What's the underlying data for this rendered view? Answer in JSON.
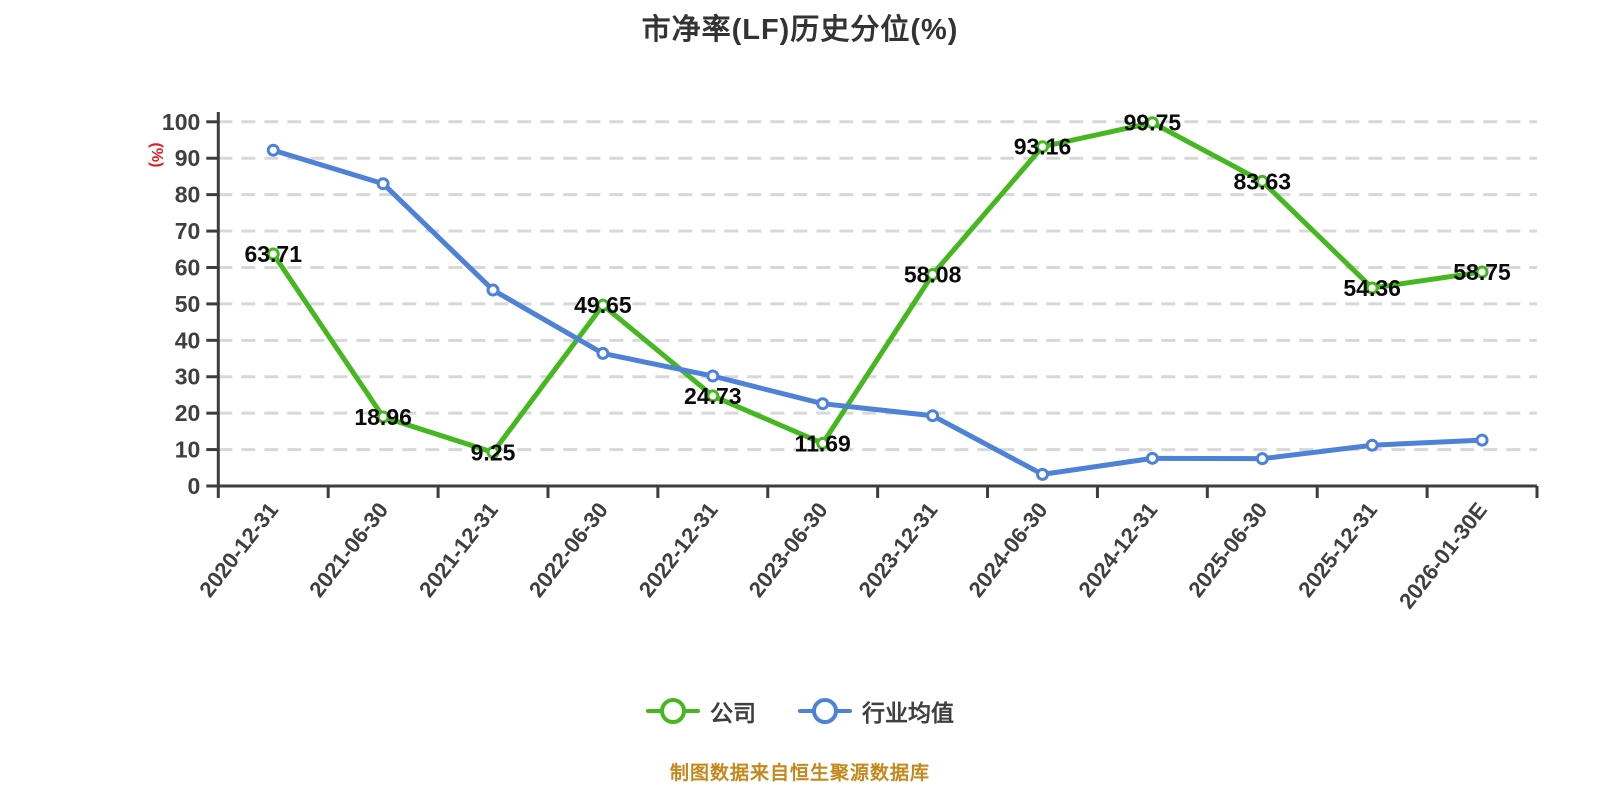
{
  "page": {
    "background": "#ffffff",
    "source_note": {
      "text": "制图数据来自恒生聚源数据库",
      "color": "#c5881c"
    }
  },
  "chart_data": {
    "type": "line",
    "title": "市净率(LF)历史分位(%)",
    "title_color": "#333333",
    "grid": {
      "style": "horizontal-dashed",
      "color": "#d8d8d8"
    },
    "axis_color": "#3d3d3d",
    "tick_label_color": "#3f3f3f",
    "legend_position": "bottom",
    "y_axis": {
      "unit_label": "(%)",
      "unit_label_color": "#e02020",
      "min": 0,
      "max": 100,
      "tick_step": 10,
      "ticks": [
        0,
        10,
        20,
        30,
        40,
        50,
        60,
        70,
        80,
        90,
        100
      ]
    },
    "x_axis": {
      "categories": [
        "2020-12-31",
        "2021-06-30",
        "2021-12-31",
        "2022-06-30",
        "2022-12-31",
        "2023-06-30",
        "2023-12-31",
        "2024-06-30",
        "2024-12-31",
        "2025-06-30",
        "2025-12-31",
        "2026-01-30E"
      ]
    },
    "series": [
      {
        "name": "公司",
        "color": "#45b820",
        "marker": "circle-white-fill",
        "show_value_labels": true,
        "value_label_color": "#0a0a0a",
        "values": [
          63.71,
          18.96,
          9.25,
          49.65,
          24.73,
          11.69,
          58.08,
          93.16,
          99.75,
          83.63,
          54.36,
          58.75
        ]
      },
      {
        "name": "行业均值",
        "color": "#4d82d8",
        "marker": "circle-white-fill",
        "show_value_labels": false,
        "values_estimated_from_plot": true,
        "values": [
          92.2,
          83.0,
          53.8,
          36.4,
          30.2,
          22.6,
          19.3,
          3.2,
          7.6,
          7.5,
          11.2,
          12.6
        ]
      }
    ]
  }
}
